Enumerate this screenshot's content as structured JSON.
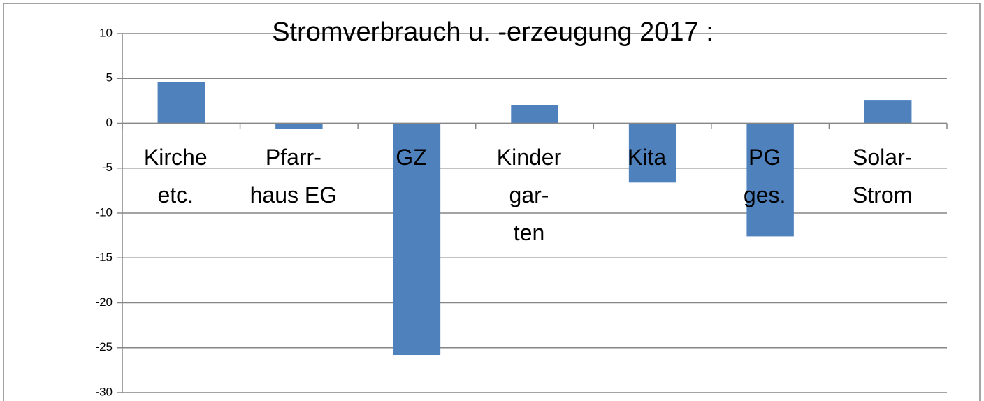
{
  "chart_data": {
    "type": "bar",
    "title": "Stromverbrauch u. -erzeugung 2017 :",
    "categories": [
      [
        "Kirche",
        "etc."
      ],
      [
        "Pfarr-",
        "haus EG"
      ],
      [
        "GZ"
      ],
      [
        "Kinder",
        "gar-",
        "ten"
      ],
      [
        "Kita"
      ],
      [
        "PG",
        "ges."
      ],
      [
        "Solar-",
        "Strom"
      ]
    ],
    "values": [
      4.6,
      -0.6,
      -25.8,
      2.0,
      -6.6,
      -12.6,
      2.6
    ],
    "color": "#4f81bd",
    "ylim": [
      -30,
      10
    ],
    "yticks": [
      -30,
      -25,
      -20,
      -15,
      -10,
      -5,
      0,
      5,
      10
    ],
    "grid": true
  }
}
